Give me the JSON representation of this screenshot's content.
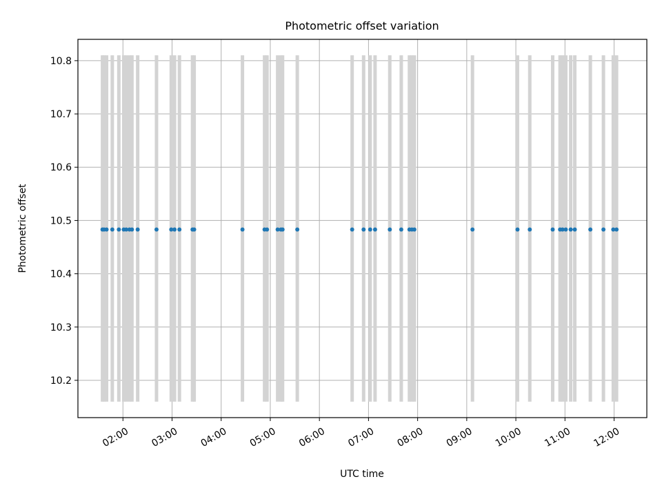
{
  "chart_data": {
    "type": "scatter",
    "title": "Photometric offset variation",
    "xlabel": "UTC time",
    "ylabel": "Photometric offset",
    "x_tick_labels": [
      "02:00",
      "03:00",
      "04:00",
      "05:00",
      "06:00",
      "07:00",
      "08:00",
      "09:00",
      "10:00",
      "11:00",
      "12:00"
    ],
    "y_tick_labels": [
      "10.2",
      "10.3",
      "10.4",
      "10.5",
      "10.6",
      "10.7",
      "10.8"
    ],
    "xlim": [
      "01:05",
      "12:40"
    ],
    "ylim": [
      10.13,
      10.84
    ],
    "grid": true,
    "marker_color": "#1f77b4",
    "vline_color": "#d3d3d3",
    "vline_range": [
      10.16,
      10.81
    ],
    "points": {
      "x": [
        "01:35",
        "01:37",
        "01:40",
        "01:47",
        "01:55",
        "02:01",
        "02:04",
        "02:08",
        "02:11",
        "02:18",
        "02:41",
        "02:59",
        "03:03",
        "03:09",
        "03:25",
        "03:27",
        "04:26",
        "04:53",
        "04:56",
        "05:09",
        "05:13",
        "05:15",
        "05:33",
        "06:40",
        "06:54",
        "07:02",
        "07:08",
        "07:26",
        "07:40",
        "07:50",
        "07:53",
        "07:56",
        "09:07",
        "10:02",
        "10:17",
        "10:45",
        "10:54",
        "10:57",
        "11:01",
        "11:07",
        "11:12",
        "11:31",
        "11:47",
        "11:59",
        "12:03"
      ],
      "y": [
        10.483,
        10.483,
        10.483,
        10.483,
        10.483,
        10.483,
        10.483,
        10.483,
        10.483,
        10.483,
        10.483,
        10.483,
        10.483,
        10.483,
        10.483,
        10.483,
        10.483,
        10.483,
        10.483,
        10.483,
        10.483,
        10.483,
        10.483,
        10.483,
        10.483,
        10.483,
        10.483,
        10.483,
        10.483,
        10.483,
        10.483,
        10.483,
        10.483,
        10.483,
        10.483,
        10.483,
        10.483,
        10.483,
        10.483,
        10.483,
        10.483,
        10.483,
        10.483,
        10.483,
        10.483
      ]
    }
  }
}
